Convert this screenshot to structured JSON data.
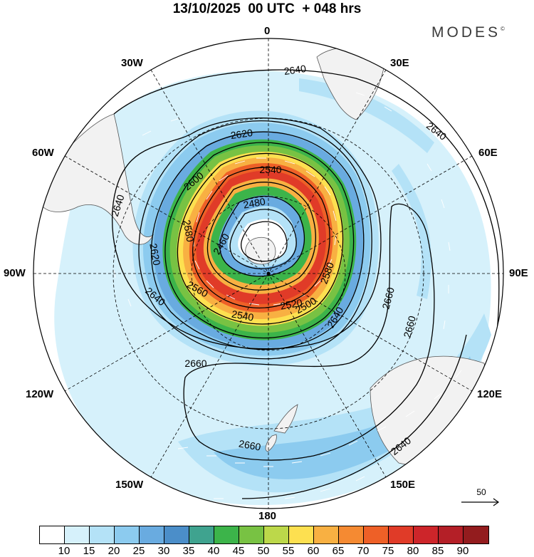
{
  "title": "13/10/2025  00 UTC  + 048 hrs",
  "brand": "MODES",
  "brand_mark": "©",
  "longitude_labels": {
    "n0": "0",
    "e30": "30E",
    "e60": "60E",
    "e90": "90E",
    "e120": "120E",
    "e150": "150E",
    "s180": "180",
    "w150": "150W",
    "w120": "120W",
    "w90": "90W",
    "w60": "60W",
    "w30": "30W"
  },
  "contour_labels": {
    "c2640a": "2640",
    "c2640b": "2640",
    "c2640c": "2640",
    "c2640d": "2640",
    "c2640e": "2640",
    "c2640f": "2640",
    "c2620a": "2620",
    "c2620b": "2620",
    "c2600": "2600",
    "c2580a": "2580",
    "c2580b": "2580",
    "c2560": "2560",
    "c2540a": "2540",
    "c2540b": "2540",
    "c2520": "2520",
    "c2500": "2500",
    "c2480": "2480",
    "c2460": "2460",
    "c2660a": "2660",
    "c2660b": "2660",
    "c2660c": "2660",
    "c2660d": "2660"
  },
  "reference_vector": "50",
  "colorbar": {
    "colors": [
      "#ffffff",
      "#d6f1fb",
      "#b4e2f7",
      "#8ccbef",
      "#69abe0",
      "#4b8ec9",
      "#3fa38f",
      "#3cb44a",
      "#78c243",
      "#bcd84a",
      "#fde050",
      "#f8b042",
      "#f58a32",
      "#ee6027",
      "#e03b28",
      "#cd252a",
      "#b41f27",
      "#931c1e"
    ],
    "labels": [
      "10",
      "15",
      "20",
      "25",
      "30",
      "35",
      "40",
      "45",
      "50",
      "55",
      "60",
      "65",
      "70",
      "75",
      "80",
      "85",
      "90"
    ]
  }
}
